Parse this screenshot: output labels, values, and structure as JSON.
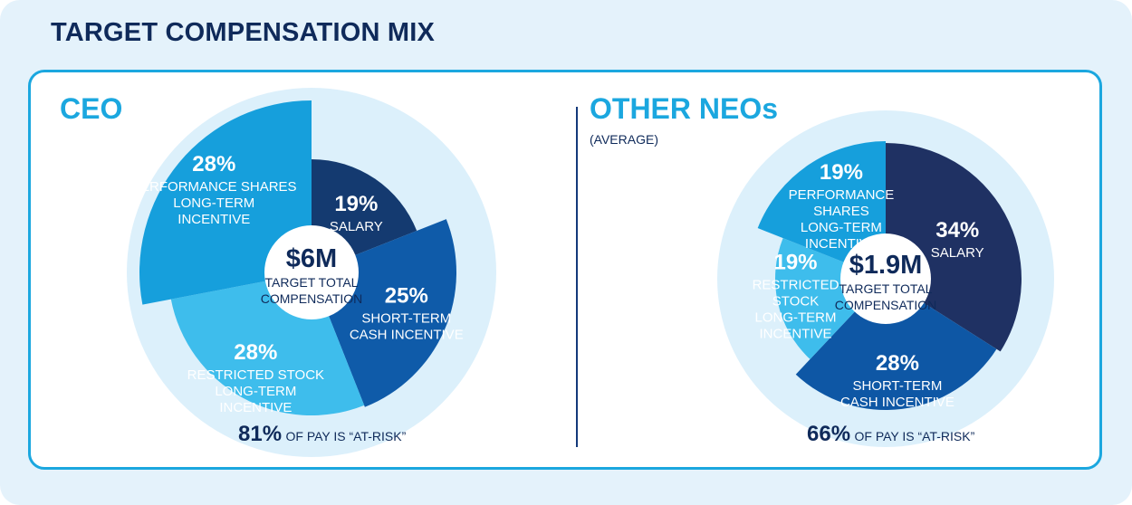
{
  "title": "TARGET COMPENSATION MIX",
  "colors": {
    "background": "#e4f2fb",
    "border": "#1ba7df",
    "dark_navy": "#0f2a5a",
    "halo": "#dcf0fb"
  },
  "chart_data": [
    {
      "type": "pie",
      "title": "CEO",
      "subtitle": "",
      "center_value": "$6M",
      "center_label": [
        "TARGET TOTAL",
        "COMPENSATION"
      ],
      "at_risk_value": "81%",
      "at_risk_text": "OF PAY IS “AT-RISK”",
      "slices": [
        {
          "name": "SALARY",
          "pct_text": "19%",
          "value": 19,
          "label_lines": [
            "SALARY"
          ],
          "color": "#143a70",
          "text": "light"
        },
        {
          "name": "SHORT-TERM CASH INCENTIVE",
          "pct_text": "25%",
          "value": 25,
          "label_lines": [
            "SHORT-TERM",
            "CASH INCENTIVE"
          ],
          "color": "#0f5ba9",
          "text": "light"
        },
        {
          "name": "RESTRICTED STOCK LONG-TERM INCENTIVE",
          "pct_text": "28%",
          "value": 28,
          "label_lines": [
            "RESTRICTED STOCK",
            "LONG-TERM",
            "INCENTIVE"
          ],
          "color": "#3ebdec",
          "text": "light"
        },
        {
          "name": "PERFORMANCE SHARES LONG-TERM INCENTIVE",
          "pct_text": "28%",
          "value": 28,
          "label_lines": [
            "PERFORMANCE SHARES",
            "LONG-TERM",
            "INCENTIVE"
          ],
          "color": "#169fdc",
          "text": "light"
        }
      ]
    },
    {
      "type": "pie",
      "title": "OTHER NEOs",
      "subtitle": "(AVERAGE)",
      "center_value": "$1.9M",
      "center_label": [
        "TARGET TOTAL",
        "COMPENSATION"
      ],
      "at_risk_value": "66%",
      "at_risk_text": "OF PAY IS “AT-RISK”",
      "slices": [
        {
          "name": "SALARY",
          "pct_text": "34%",
          "value": 34,
          "label_lines": [
            "SALARY"
          ],
          "color": "#1f3163",
          "text": "light"
        },
        {
          "name": "SHORT-TERM CASH INCENTIVE",
          "pct_text": "28%",
          "value": 28,
          "label_lines": [
            "SHORT-TERM",
            "CASH INCENTIVE"
          ],
          "color": "#0e57a5",
          "text": "light"
        },
        {
          "name": "RESTRICTED STOCK LONG-TERM INCENTIVE",
          "pct_text": "19%",
          "value": 19,
          "label_lines": [
            "RESTRICTED",
            "STOCK",
            "LONG-TERM",
            "INCENTIVE"
          ],
          "color": "#3ebdec",
          "text": "light"
        },
        {
          "name": "PERFORMANCE SHARES LONG-TERM INCENTIVE",
          "pct_text": "19%",
          "value": 19,
          "label_lines": [
            "PERFORMANCE",
            "SHARES",
            "LONG-TERM",
            "INCENTIVE"
          ],
          "color": "#169fdc",
          "text": "light"
        }
      ]
    }
  ]
}
